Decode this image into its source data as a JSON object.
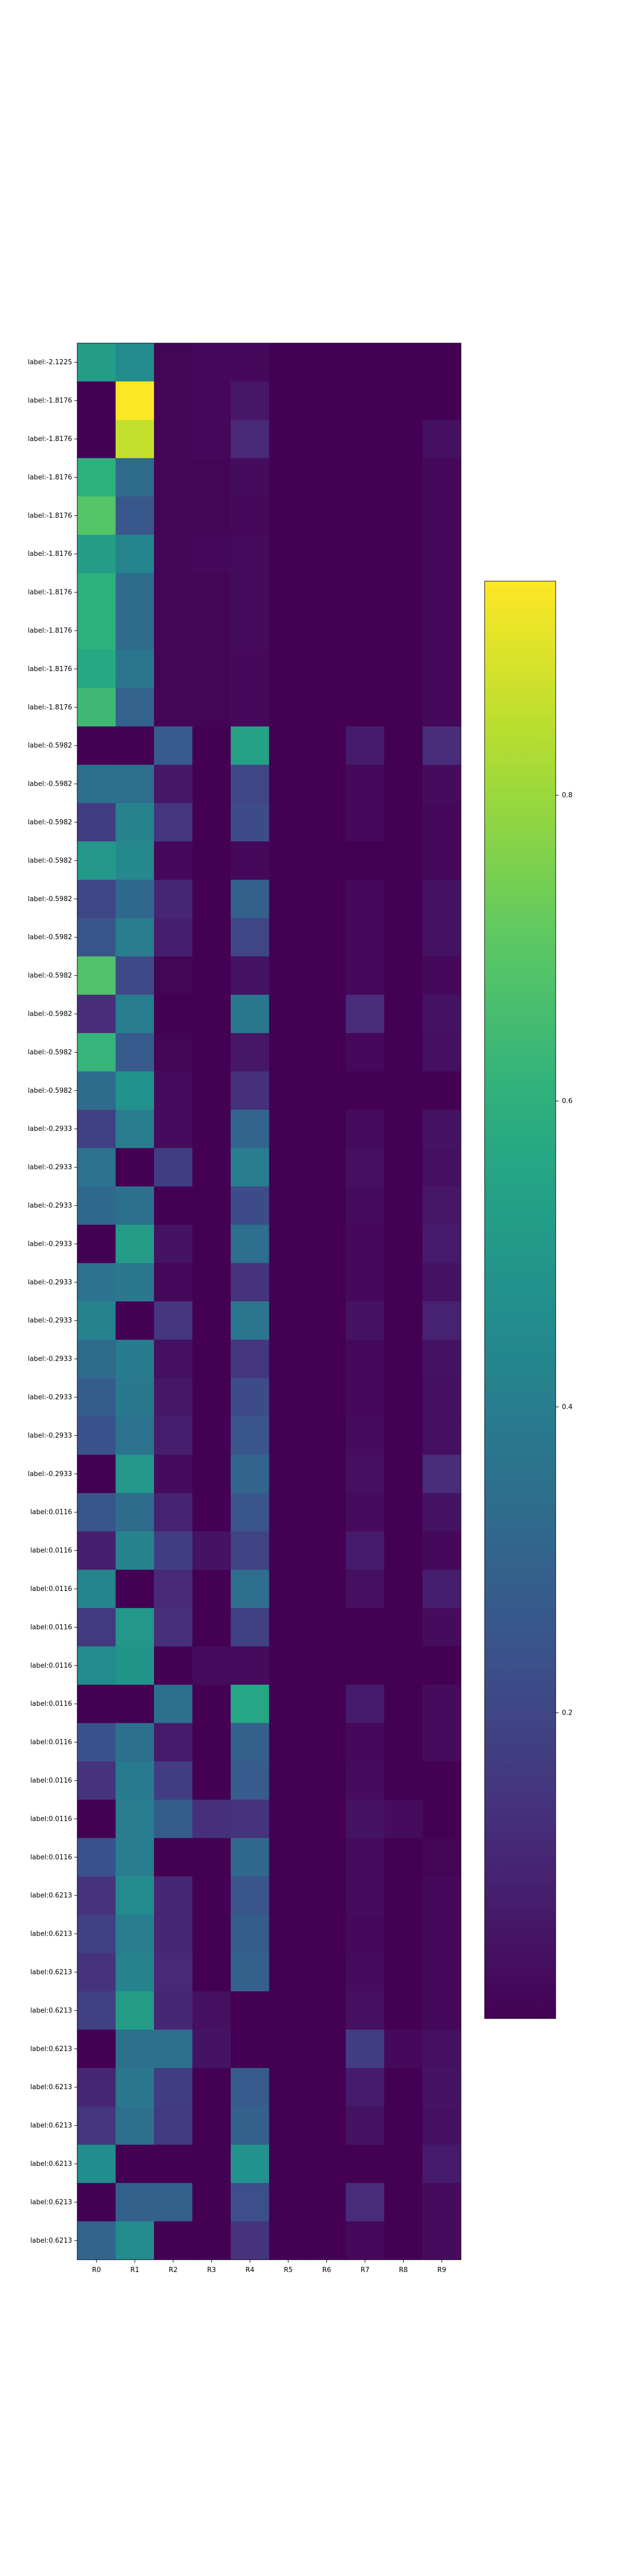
{
  "chart_data": {
    "type": "heatmap",
    "title": "",
    "xlabel": "",
    "ylabel": "",
    "colormap": "viridis",
    "colorbar": {
      "range": [
        0.0,
        0.94
      ],
      "ticks": [
        0.2,
        0.4,
        0.6,
        0.8
      ],
      "tick_labels": [
        "0.2",
        "0.4",
        "0.6",
        "0.8"
      ]
    },
    "columns": [
      "R0",
      "R1",
      "R2",
      "R3",
      "R4",
      "R5",
      "R6",
      "R7",
      "R8",
      "R9"
    ],
    "rows": [
      "label:-2.1225",
      "label:-1.8176",
      "label:-1.8176",
      "label:-1.8176",
      "label:-1.8176",
      "label:-1.8176",
      "label:-1.8176",
      "label:-1.8176",
      "label:-1.8176",
      "label:-1.8176",
      "label:-0.5982",
      "label:-0.5982",
      "label:-0.5982",
      "label:-0.5982",
      "label:-0.5982",
      "label:-0.5982",
      "label:-0.5982",
      "label:-0.5982",
      "label:-0.5982",
      "label:-0.5982",
      "label:-0.2933",
      "label:-0.2933",
      "label:-0.2933",
      "label:-0.2933",
      "label:-0.2933",
      "label:-0.2933",
      "label:-0.2933",
      "label:-0.2933",
      "label:-0.2933",
      "label:-0.2933",
      "label:0.0116",
      "label:0.0116",
      "label:0.0116",
      "label:0.0116",
      "label:0.0116",
      "label:0.0116",
      "label:0.0116",
      "label:0.0116",
      "label:0.0116",
      "label:0.0116",
      "label:0.6213",
      "label:0.6213",
      "label:0.6213",
      "label:0.6213",
      "label:0.6213",
      "label:0.6213",
      "label:0.6213",
      "label:0.6213",
      "label:0.6213",
      "label:0.6213"
    ],
    "values": [
      [
        0.52,
        0.45,
        0.01,
        0.02,
        0.02,
        0.0,
        0.0,
        0.0,
        0.0,
        0.0
      ],
      [
        0.0,
        0.94,
        0.01,
        0.02,
        0.06,
        0.0,
        0.0,
        0.0,
        0.0,
        0.0
      ],
      [
        0.0,
        0.86,
        0.01,
        0.02,
        0.11,
        0.0,
        0.0,
        0.0,
        0.0,
        0.04
      ],
      [
        0.6,
        0.33,
        0.01,
        0.01,
        0.03,
        0.0,
        0.0,
        0.0,
        0.0,
        0.02
      ],
      [
        0.69,
        0.26,
        0.01,
        0.01,
        0.02,
        0.0,
        0.0,
        0.0,
        0.0,
        0.02
      ],
      [
        0.52,
        0.43,
        0.01,
        0.02,
        0.03,
        0.0,
        0.0,
        0.0,
        0.0,
        0.02
      ],
      [
        0.6,
        0.33,
        0.01,
        0.01,
        0.03,
        0.0,
        0.0,
        0.0,
        0.0,
        0.02
      ],
      [
        0.6,
        0.33,
        0.01,
        0.01,
        0.03,
        0.0,
        0.0,
        0.0,
        0.0,
        0.02
      ],
      [
        0.57,
        0.37,
        0.01,
        0.01,
        0.02,
        0.0,
        0.0,
        0.0,
        0.0,
        0.02
      ],
      [
        0.64,
        0.3,
        0.01,
        0.01,
        0.02,
        0.0,
        0.0,
        0.0,
        0.0,
        0.02
      ],
      [
        0.0,
        0.0,
        0.27,
        0.0,
        0.54,
        0.0,
        0.0,
        0.07,
        0.0,
        0.12
      ],
      [
        0.35,
        0.34,
        0.06,
        0.0,
        0.2,
        0.0,
        0.0,
        0.02,
        0.0,
        0.03
      ],
      [
        0.17,
        0.42,
        0.15,
        0.0,
        0.22,
        0.0,
        0.0,
        0.02,
        0.0,
        0.02
      ],
      [
        0.5,
        0.44,
        0.02,
        0.0,
        0.02,
        0.0,
        0.0,
        0.0,
        0.0,
        0.02
      ],
      [
        0.2,
        0.32,
        0.1,
        0.0,
        0.29,
        0.0,
        0.0,
        0.02,
        0.0,
        0.05
      ],
      [
        0.25,
        0.4,
        0.08,
        0.0,
        0.2,
        0.0,
        0.0,
        0.02,
        0.0,
        0.05
      ],
      [
        0.68,
        0.21,
        0.01,
        0.0,
        0.05,
        0.0,
        0.0,
        0.02,
        0.0,
        0.02
      ],
      [
        0.12,
        0.4,
        0.0,
        0.0,
        0.38,
        0.0,
        0.0,
        0.12,
        0.0,
        0.05
      ],
      [
        0.62,
        0.27,
        0.01,
        0.0,
        0.06,
        0.0,
        0.0,
        0.02,
        0.0,
        0.04
      ],
      [
        0.33,
        0.48,
        0.03,
        0.0,
        0.13,
        0.0,
        0.0,
        0.0,
        0.0,
        0.0
      ],
      [
        0.18,
        0.4,
        0.03,
        0.0,
        0.31,
        0.0,
        0.0,
        0.03,
        0.0,
        0.05
      ],
      [
        0.36,
        0.0,
        0.17,
        0.0,
        0.4,
        0.0,
        0.0,
        0.04,
        0.0,
        0.04
      ],
      [
        0.32,
        0.35,
        0.0,
        0.0,
        0.22,
        0.0,
        0.0,
        0.03,
        0.0,
        0.06
      ],
      [
        0.0,
        0.52,
        0.05,
        0.0,
        0.34,
        0.0,
        0.0,
        0.02,
        0.0,
        0.07
      ],
      [
        0.36,
        0.38,
        0.02,
        0.0,
        0.14,
        0.0,
        0.0,
        0.02,
        0.0,
        0.05
      ],
      [
        0.42,
        0.0,
        0.15,
        0.0,
        0.37,
        0.0,
        0.0,
        0.05,
        0.0,
        0.09
      ],
      [
        0.33,
        0.39,
        0.04,
        0.0,
        0.15,
        0.0,
        0.0,
        0.02,
        0.0,
        0.05
      ],
      [
        0.28,
        0.38,
        0.06,
        0.0,
        0.22,
        0.0,
        0.0,
        0.02,
        0.0,
        0.04
      ],
      [
        0.24,
        0.36,
        0.08,
        0.0,
        0.25,
        0.0,
        0.0,
        0.03,
        0.0,
        0.04
      ],
      [
        0.0,
        0.5,
        0.03,
        0.0,
        0.31,
        0.0,
        0.0,
        0.04,
        0.0,
        0.12
      ],
      [
        0.25,
        0.33,
        0.09,
        0.0,
        0.25,
        0.0,
        0.0,
        0.03,
        0.0,
        0.05
      ],
      [
        0.08,
        0.42,
        0.17,
        0.05,
        0.19,
        0.0,
        0.0,
        0.07,
        0.0,
        0.02
      ],
      [
        0.43,
        0.0,
        0.11,
        0.0,
        0.34,
        0.0,
        0.0,
        0.04,
        0.0,
        0.08
      ],
      [
        0.16,
        0.5,
        0.13,
        0.0,
        0.18,
        0.0,
        0.0,
        0.0,
        0.0,
        0.03
      ],
      [
        0.45,
        0.49,
        0.0,
        0.03,
        0.03,
        0.0,
        0.0,
        0.0,
        0.0,
        0.0
      ],
      [
        0.0,
        0.0,
        0.34,
        0.0,
        0.56,
        0.0,
        0.0,
        0.07,
        0.0,
        0.03
      ],
      [
        0.24,
        0.35,
        0.07,
        0.0,
        0.29,
        0.0,
        0.0,
        0.02,
        0.0,
        0.03
      ],
      [
        0.14,
        0.39,
        0.17,
        0.0,
        0.27,
        0.0,
        0.0,
        0.03,
        0.0,
        0.0
      ],
      [
        0.0,
        0.4,
        0.28,
        0.13,
        0.14,
        0.0,
        0.0,
        0.05,
        0.03,
        0.0
      ],
      [
        0.24,
        0.4,
        0.0,
        0.0,
        0.32,
        0.0,
        0.0,
        0.03,
        0.0,
        0.01
      ],
      [
        0.14,
        0.45,
        0.1,
        0.0,
        0.25,
        0.0,
        0.0,
        0.03,
        0.0,
        0.02
      ],
      [
        0.18,
        0.4,
        0.1,
        0.0,
        0.28,
        0.0,
        0.0,
        0.02,
        0.0,
        0.02
      ],
      [
        0.14,
        0.42,
        0.11,
        0.0,
        0.29,
        0.0,
        0.0,
        0.03,
        0.0,
        0.02
      ],
      [
        0.18,
        0.52,
        0.1,
        0.04,
        0.0,
        0.0,
        0.0,
        0.04,
        0.0,
        0.02
      ],
      [
        0.0,
        0.35,
        0.35,
        0.05,
        0.0,
        0.0,
        0.0,
        0.17,
        0.02,
        0.04
      ],
      [
        0.1,
        0.37,
        0.17,
        0.0,
        0.27,
        0.0,
        0.0,
        0.07,
        0.0,
        0.05
      ],
      [
        0.15,
        0.35,
        0.16,
        0.0,
        0.29,
        0.0,
        0.0,
        0.05,
        0.0,
        0.04
      ],
      [
        0.46,
        0.0,
        0.0,
        0.0,
        0.48,
        0.0,
        0.0,
        0.0,
        0.0,
        0.07
      ],
      [
        0.0,
        0.29,
        0.29,
        0.0,
        0.23,
        0.0,
        0.0,
        0.12,
        0.0,
        0.03
      ],
      [
        0.31,
        0.45,
        0.0,
        0.0,
        0.14,
        0.0,
        0.0,
        0.02,
        0.0,
        0.03
      ]
    ]
  }
}
